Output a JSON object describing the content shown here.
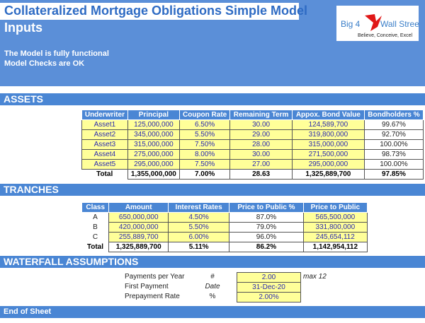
{
  "header": {
    "title": "Collateralized Mortgage Obligations Simple Model",
    "subtitle": "Inputs",
    "status1": "The Model is fully functional",
    "status2": "Model Checks are OK",
    "logo_text": "Big 4 Wall Street",
    "logo_tagline": "Believe, Conceive, Excel"
  },
  "assets": {
    "section": "ASSETS",
    "columns": [
      "Underwriter",
      "Principal",
      "Coupon Rate",
      "Remaining Term",
      "Appox. Bond Value",
      "Bondholders %"
    ],
    "rows": [
      [
        "Asset1",
        "125,000,000",
        "6.50%",
        "30.00",
        "124,589,700",
        "99.67%"
      ],
      [
        "Asset2",
        "345,000,000",
        "5.50%",
        "29.00",
        "319,800,000",
        "92.70%"
      ],
      [
        "Asset3",
        "315,000,000",
        "7.50%",
        "28.00",
        "315,000,000",
        "100.00%"
      ],
      [
        "Asset4",
        "275,000,000",
        "8.00%",
        "30.00",
        "271,500,000",
        "98.73%"
      ],
      [
        "Asset5",
        "295,000,000",
        "7.50%",
        "27.00",
        "295,000,000",
        "100.00%"
      ]
    ],
    "total": [
      "Total",
      "1,355,000,000",
      "7.00%",
      "28.63",
      "1,325,889,700",
      "97.85%"
    ]
  },
  "tranches": {
    "section": "TRANCHES",
    "columns": [
      "Class",
      "Amount",
      "Interest Rates",
      "Price to Public %",
      "Price to Public"
    ],
    "rows": [
      [
        "A",
        "650,000,000",
        "4.50%",
        "87.0%",
        "565,500,000"
      ],
      [
        "B",
        "420,000,000",
        "5.50%",
        "79.0%",
        "331,800,000"
      ],
      [
        "C",
        "255,889,700",
        "6.00%",
        "96.0%",
        "245,654,112"
      ]
    ],
    "total": [
      "Total",
      "1,325,889,700",
      "5.11%",
      "86.2%",
      "1,142,954,112"
    ]
  },
  "waterfall": {
    "section": "WATERFALL ASSUMPTIONS",
    "rows": [
      {
        "label": "Payments per Year",
        "unit": "#",
        "value": "2.00",
        "note": "max 12"
      },
      {
        "label": "First Payment",
        "unit": "Date",
        "value": "31-Dec-20",
        "note": ""
      },
      {
        "label": "Prepayment Rate",
        "unit": "%",
        "value": "2.00%",
        "note": ""
      }
    ]
  },
  "footer": {
    "section": "End of Sheet"
  },
  "colors": {
    "header_blue": "#4a86d4",
    "input_yellow": "#ffff99",
    "input_text": "#2b2bb0"
  }
}
